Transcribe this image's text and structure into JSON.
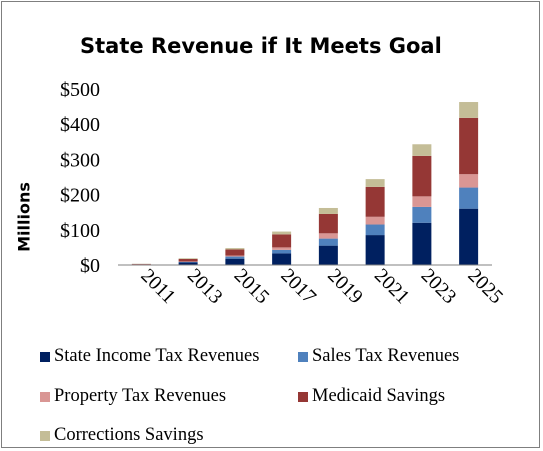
{
  "chart_data": {
    "type": "bar",
    "stacked": true,
    "title": "State Revenue if It Meets Goal",
    "ylabel": "Millions",
    "xlabel": "",
    "categories": [
      "2011",
      "2013",
      "2015",
      "2017",
      "2019",
      "2021",
      "2023",
      "2025"
    ],
    "ylim": [
      0,
      500
    ],
    "yticks": [
      "$0",
      "$100",
      "$200",
      "$300",
      "$400",
      "$500"
    ],
    "ytick_values": [
      0,
      100,
      200,
      300,
      400,
      500
    ],
    "grid": false,
    "legend_position": "bottom",
    "series": [
      {
        "name": "State Income Tax Revenues",
        "color": "#002060",
        "values": [
          1,
          7,
          18,
          33,
          55,
          85,
          120,
          160
        ]
      },
      {
        "name": "Sales Tax Revenues",
        "color": "#4f81bd",
        "values": [
          0.5,
          2,
          6,
          10,
          20,
          30,
          45,
          60
        ]
      },
      {
        "name": "Property Tax Revenues",
        "color": "#d99694",
        "values": [
          0.5,
          1,
          3,
          7,
          15,
          22,
          30,
          38
        ]
      },
      {
        "name": "Medicaid Savings",
        "color": "#953735",
        "values": [
          1,
          7,
          17,
          37,
          55,
          85,
          115,
          160
        ]
      },
      {
        "name": "Corrections Savings",
        "color": "#c4bd97",
        "values": [
          0.5,
          2,
          4,
          8,
          17,
          22,
          33,
          45
        ]
      }
    ]
  }
}
